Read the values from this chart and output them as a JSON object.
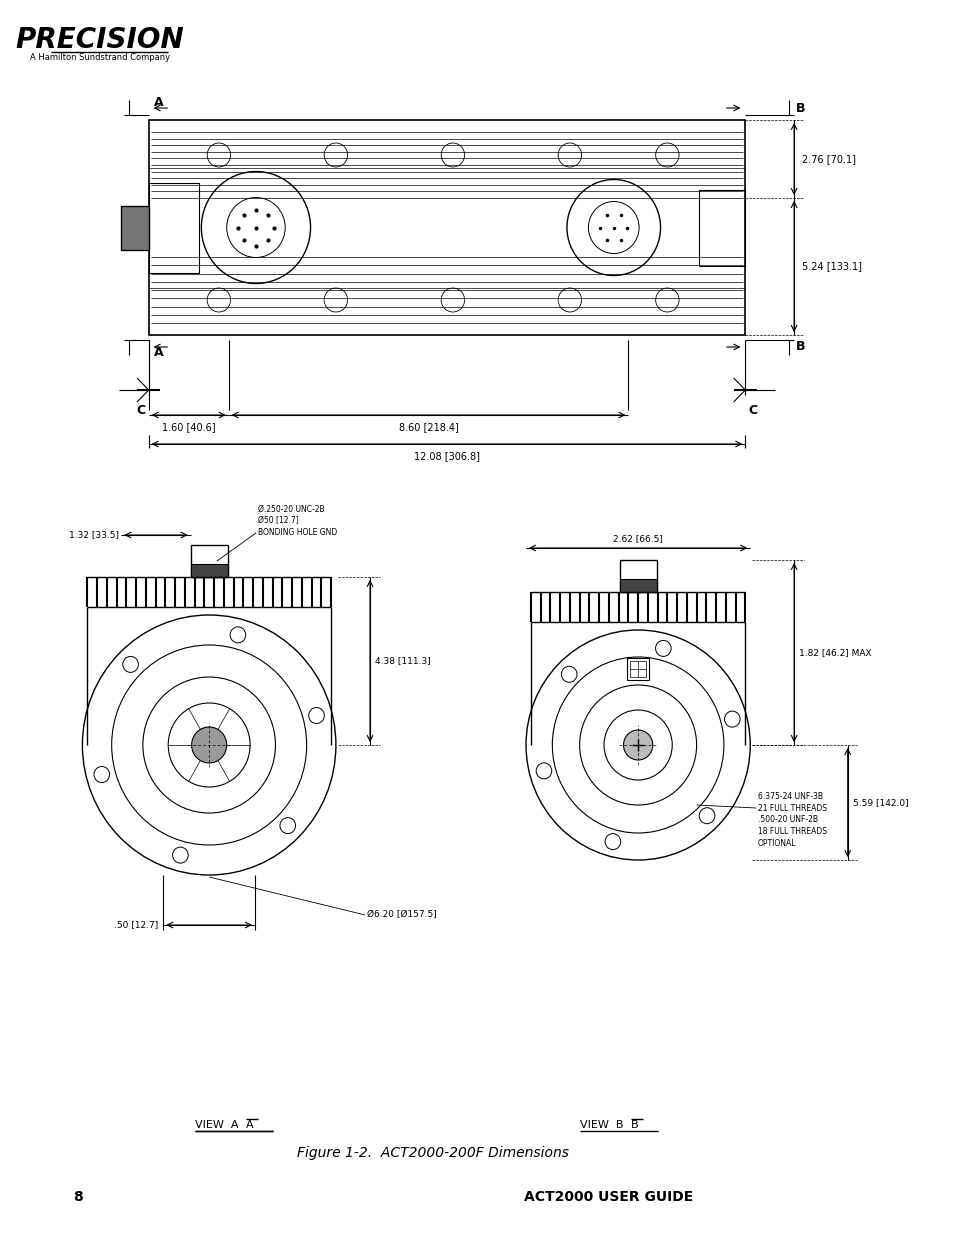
{
  "page_num": "8",
  "footer_right": "ACT2000 USER GUIDE",
  "logo_text": "PRECISION",
  "logo_subtext": "A Hamilton Sundstrand Company",
  "figure_caption": "Figure 1-2.  ACT2000-200F Dimensions",
  "bg_color": "#ffffff",
  "line_color": "#000000",
  "annotations": {
    "bonding_hole": "Ø.250-20 UNC-2B\nØ50 [12.7]\nBONDING HOLE GND",
    "left_dim": "1.32 [33.5]",
    "center_dim": "4.38 [111.3]",
    "flange_dim": "Ø6.20 [Ø157.5]",
    "shaft_dim": ".50 [12.7]",
    "right_dim": "2.62 [66.5]",
    "right_height": "1.82 [46.2] MAX",
    "right_od": "5.59 [142.0]",
    "thread_note": "6.375-24 UNF-3B\n21 FULL THREADS\n.500-20 UNF-2B\n18 FULL THREADS\nOPTIONAL",
    "dim_left": "1.60 [40.6]",
    "dim_mid": "8.60 [218.4]",
    "dim_total": "12.08 [306.8]",
    "dim_right_top": "2.76 [70.1]",
    "dim_right_bot": "5.24 [133.1]"
  }
}
